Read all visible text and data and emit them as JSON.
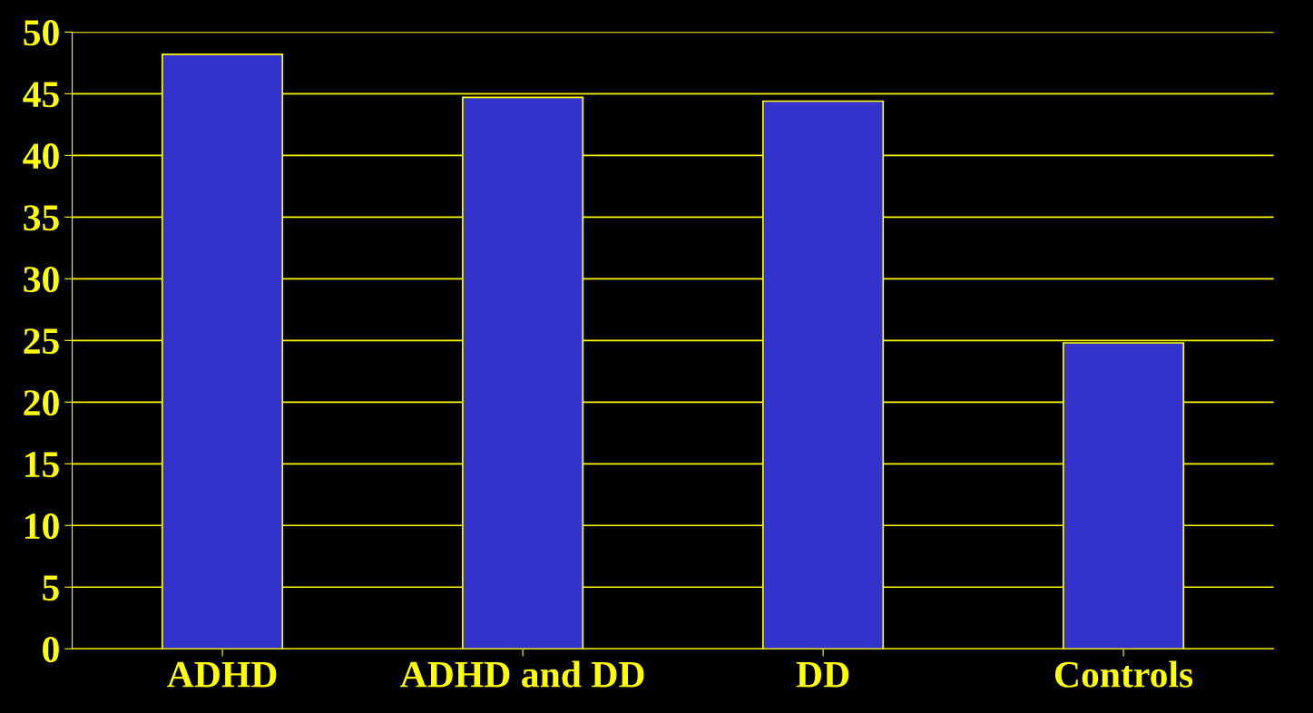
{
  "chart_data": {
    "type": "bar",
    "categories": [
      "ADHD",
      "ADHD and DD",
      "DD",
      "Controls"
    ],
    "values": [
      48.2,
      44.7,
      44.4,
      24.8
    ],
    "color": "#3333cc",
    "ylim": [
      0,
      50
    ],
    "yticks": [
      0,
      5,
      10,
      15,
      20,
      25,
      30,
      35,
      40,
      45,
      50
    ],
    "grid": "y"
  }
}
